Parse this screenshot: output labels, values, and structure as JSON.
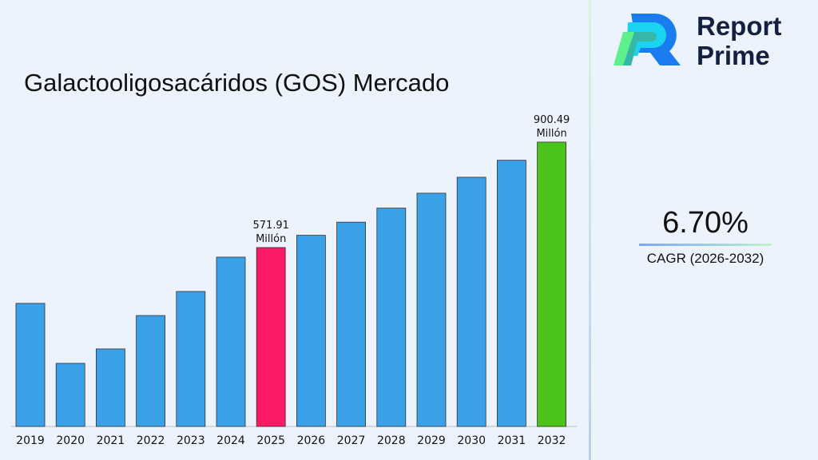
{
  "brand": {
    "line1": "Report",
    "line2": "Prime"
  },
  "cagr": {
    "value": "6.70%",
    "label": "CAGR (2026-2032)"
  },
  "colors": {
    "default_bar": "#3aa0e8",
    "highlight_2025": "#fb1a64",
    "highlight_2032": "#4cc31a"
  },
  "chart_data": {
    "type": "bar",
    "title": "Galactooligosacáridos (GOS) Mercado",
    "categories": [
      "2019",
      "2020",
      "2021",
      "2022",
      "2023",
      "2024",
      "2025",
      "2026",
      "2027",
      "2028",
      "2029",
      "2030",
      "2031",
      "2032"
    ],
    "values": [
      398,
      211,
      256,
      360,
      435,
      542,
      571.91,
      610.2,
      651.1,
      694.8,
      741.3,
      791.0,
      844.0,
      900.49
    ],
    "data_labels": [
      {
        "category": "2025",
        "line1": "571.91",
        "line2": "Millón"
      },
      {
        "category": "2032",
        "line1": "900.49",
        "line2": "Millón"
      }
    ],
    "xlabel": "",
    "ylabel": "",
    "grid": false
  }
}
